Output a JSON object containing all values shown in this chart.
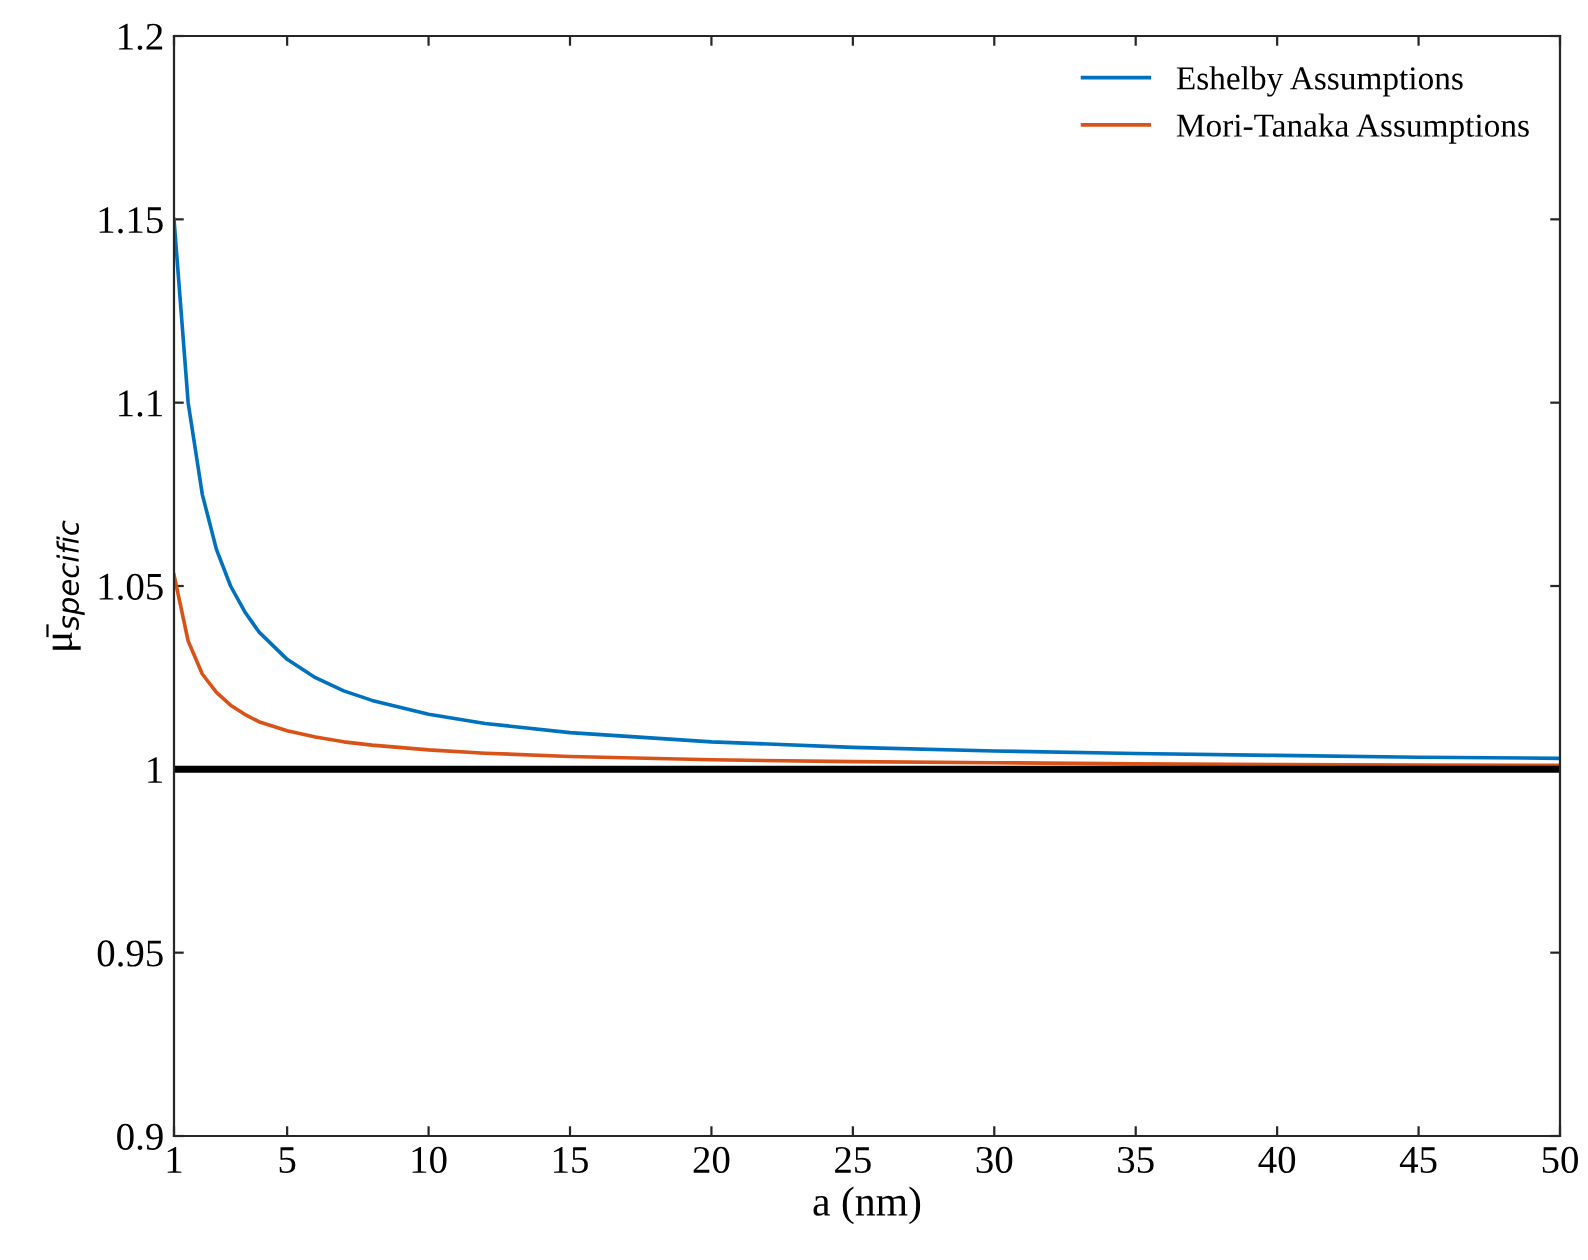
{
  "chart_data": {
    "type": "line",
    "xlabel": "a (nm)",
    "ylabel": "μ̄$_{specific}$",
    "xlim": [
      1,
      50
    ],
    "ylim": [
      0.9,
      1.2
    ],
    "xticks": [
      1,
      5,
      10,
      15,
      20,
      25,
      30,
      35,
      40,
      45,
      50
    ],
    "yticks": [
      0.9,
      0.95,
      1,
      1.05,
      1.1,
      1.15,
      1.2
    ],
    "grid": false,
    "legend": "top right",
    "series": [
      {
        "name": "Eshelby Assumptions",
        "color": "#0072bd",
        "x": [
          1,
          1.5,
          2,
          2.5,
          3,
          3.5,
          4,
          5,
          6,
          7,
          8,
          10,
          12,
          15,
          20,
          25,
          30,
          35,
          40,
          45,
          50
        ],
        "values": [
          1.15,
          1.1,
          1.075,
          1.06,
          1.05,
          1.043,
          1.0375,
          1.03,
          1.025,
          1.0214,
          1.0188,
          1.015,
          1.0125,
          1.01,
          1.0075,
          1.006,
          1.005,
          1.0043,
          1.0038,
          1.0033,
          1.003
        ]
      },
      {
        "name": "Mori-Tanaka Assumptions",
        "color": "#d95319",
        "x": [
          1,
          1.5,
          2,
          2.5,
          3,
          3.5,
          4,
          5,
          6,
          7,
          8,
          10,
          12,
          15,
          20,
          25,
          30,
          35,
          40,
          45,
          50
        ],
        "values": [
          1.053,
          1.035,
          1.026,
          1.021,
          1.0175,
          1.015,
          1.013,
          1.0105,
          1.0088,
          1.0075,
          1.0066,
          1.0053,
          1.0044,
          1.0035,
          1.0026,
          1.0021,
          1.0018,
          1.0015,
          1.0013,
          1.0012,
          1.0011
        ]
      }
    ],
    "ref_lines": [
      {
        "axis": "y",
        "value": 1,
        "color": "#000000",
        "line_style": "solid"
      }
    ]
  }
}
